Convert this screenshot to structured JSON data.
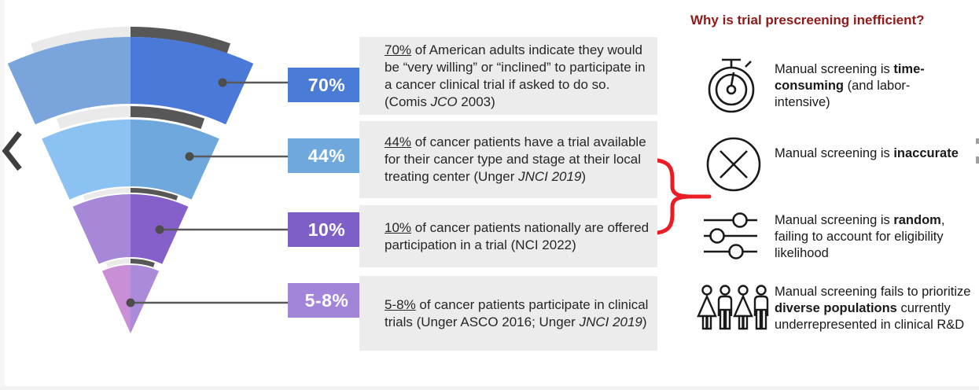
{
  "funnel": {
    "back": {
      "left": "#eaeaea",
      "right": "#575757"
    },
    "leader_color": "#595959",
    "segments": [
      {
        "label": "70%",
        "left_color": "#7aa5dc",
        "right_color": "#4a79d8",
        "badge_color": "#4a7bd6"
      },
      {
        "label": "44%",
        "left_color": "#8cc2f2",
        "right_color": "#6fa8dc",
        "badge_color": "#6fa8dc"
      },
      {
        "label": "10%",
        "left_color": "#a687d8",
        "right_color": "#8660ca",
        "badge_color": "#7d5fc7"
      },
      {
        "label": "5-8%",
        "left_color": "#c98ed6",
        "right_color": "#aa8ad9",
        "badge_color": "#a285d8"
      }
    ]
  },
  "callouts": [
    {
      "segments": [
        {
          "t": "70%",
          "u": true
        },
        {
          "t": " of American adults indicate they would be “very willing” or “inclined” to participate in a cancer clinical trial if asked to do so. (Comis "
        },
        {
          "t": "JCO",
          "i": true
        },
        {
          "t": " 2003)"
        }
      ]
    },
    {
      "segments": [
        {
          "t": "44%",
          "u": true
        },
        {
          "t": " of cancer patients have a trial available for their cancer type and stage at their local treating center (Unger "
        },
        {
          "t": "JNCI 2019",
          "i": true
        },
        {
          "t": ")"
        }
      ]
    },
    {
      "segments": [
        {
          "t": "10%",
          "u": true
        },
        {
          "t": " of cancer patients nationally are offered participation in a trial (NCI 2022)"
        }
      ]
    },
    {
      "segments": [
        {
          "t": "5-8%",
          "u": true
        },
        {
          "t": " of cancer patients participate in clinical trials (Unger ASCO 2016; Unger "
        },
        {
          "t": "JNCI 2019",
          "i": true
        },
        {
          "t": ")"
        }
      ]
    }
  ],
  "brace": {
    "color": "#ec1c24"
  },
  "right_panel": {
    "title": "Why is trial prescreening inefficient?",
    "title_color": "#8f1919",
    "items": [
      {
        "icon": "stopwatch-icon",
        "segments": [
          {
            "t": "Manual screening is "
          },
          {
            "t": "time-consuming",
            "b": true
          },
          {
            "t": " (and labor-intensive)"
          }
        ]
      },
      {
        "icon": "circle-x-icon",
        "segments": [
          {
            "t": "Manual screening is "
          },
          {
            "t": "inaccurate",
            "b": true
          }
        ]
      },
      {
        "icon": "sliders-icon",
        "segments": [
          {
            "t": "Manual screening is "
          },
          {
            "t": "random",
            "b": true
          },
          {
            "t": ", failing to account for eligibility likelihood"
          }
        ]
      },
      {
        "icon": "people-icon",
        "segments": [
          {
            "t": "Manual screening fails to prioritize "
          },
          {
            "t": "diverse populations",
            "b": true
          },
          {
            "t": " currently underrepresented in clinical R&D"
          }
        ]
      }
    ]
  }
}
